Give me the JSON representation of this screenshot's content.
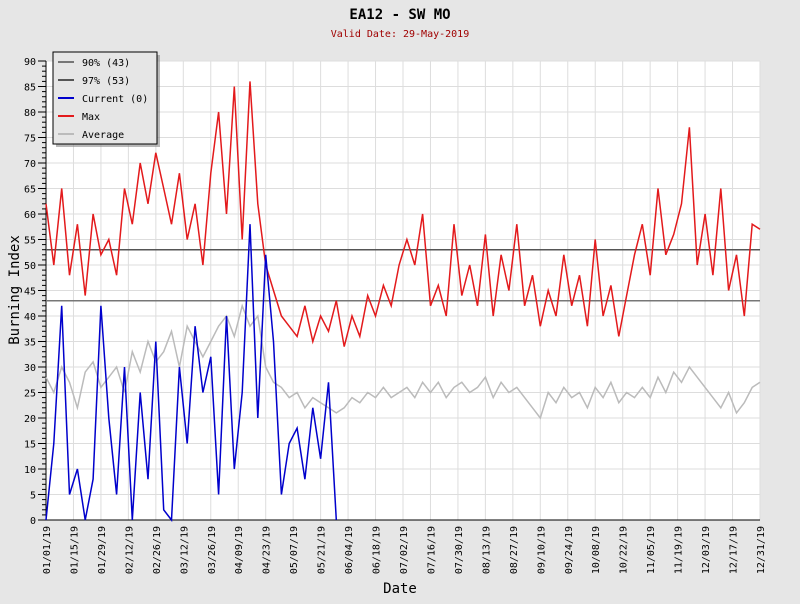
{
  "chart_data": {
    "type": "line",
    "title": "EA12 - SW MO",
    "subtitle": "Valid Date: 29-May-2019",
    "xlabel": "Date",
    "ylabel": "Burning Index",
    "ylim": [
      0,
      90
    ],
    "yticks": [
      "0",
      "5",
      "10",
      "15",
      "20",
      "25",
      "30",
      "35",
      "40",
      "45",
      "50",
      "55",
      "60",
      "65",
      "70",
      "75",
      "80",
      "85",
      "90"
    ],
    "xticks": [
      "01/01/19",
      "01/15/19",
      "01/29/19",
      "02/12/19",
      "02/26/19",
      "03/12/19",
      "03/26/19",
      "04/09/19",
      "04/23/19",
      "05/07/19",
      "05/21/19",
      "06/04/19",
      "06/18/19",
      "07/02/19",
      "07/16/19",
      "07/30/19",
      "08/13/19",
      "08/27/19",
      "09/10/19",
      "09/24/19",
      "10/08/19",
      "10/22/19",
      "11/05/19",
      "11/19/19",
      "12/03/19",
      "12/17/19",
      "12/31/19"
    ],
    "x_days_range": [
      0,
      364
    ],
    "x_step_days": 4,
    "grid": true,
    "legend_position": "top-left",
    "thresholds": [
      {
        "name": "90% (43)",
        "value": 43,
        "color": "#777777"
      },
      {
        "name": "97% (53)",
        "value": 53,
        "color": "#555555"
      }
    ],
    "series": [
      {
        "name": "Current (0)",
        "color": "#0000cc",
        "values": [
          0,
          15,
          42,
          5,
          10,
          0,
          8,
          42,
          20,
          5,
          30,
          0,
          25,
          8,
          35,
          2,
          0,
          30,
          15,
          38,
          25,
          32,
          5,
          40,
          10,
          25,
          58,
          20,
          52,
          35,
          5,
          15,
          18,
          8,
          22,
          12,
          27,
          0
        ]
      },
      {
        "name": "Max",
        "color": "#e31a1c",
        "values": [
          62,
          50,
          65,
          48,
          58,
          44,
          60,
          52,
          55,
          48,
          65,
          58,
          70,
          62,
          72,
          65,
          58,
          68,
          55,
          62,
          50,
          68,
          80,
          60,
          85,
          55,
          86,
          62,
          50,
          45,
          40,
          38,
          36,
          42,
          35,
          40,
          37,
          43,
          34,
          40,
          36,
          44,
          40,
          46,
          42,
          50,
          55,
          50,
          60,
          42,
          46,
          40,
          58,
          44,
          50,
          42,
          56,
          40,
          52,
          45,
          58,
          42,
          48,
          38,
          45,
          40,
          52,
          42,
          48,
          38,
          55,
          40,
          46,
          36,
          44,
          52,
          58,
          48,
          65,
          52,
          56,
          62,
          77,
          50,
          60,
          48,
          65,
          45,
          52,
          40,
          58,
          57
        ]
      },
      {
        "name": "Average",
        "color": "#bbbbbb",
        "values": [
          28,
          25,
          30,
          27,
          22,
          29,
          31,
          26,
          28,
          30,
          25,
          33,
          29,
          35,
          31,
          33,
          37,
          30,
          38,
          35,
          32,
          35,
          38,
          40,
          36,
          42,
          38,
          40,
          30,
          27,
          26,
          24,
          25,
          22,
          24,
          23,
          22,
          21,
          22,
          24,
          23,
          25,
          24,
          26,
          24,
          25,
          26,
          24,
          27,
          25,
          27,
          24,
          26,
          27,
          25,
          26,
          28,
          24,
          27,
          25,
          26,
          24,
          22,
          20,
          25,
          23,
          26,
          24,
          25,
          22,
          26,
          24,
          27,
          23,
          25,
          24,
          26,
          24,
          28,
          25,
          29,
          27,
          30,
          28,
          26,
          24,
          22,
          25,
          21,
          23,
          26,
          27
        ]
      }
    ]
  }
}
